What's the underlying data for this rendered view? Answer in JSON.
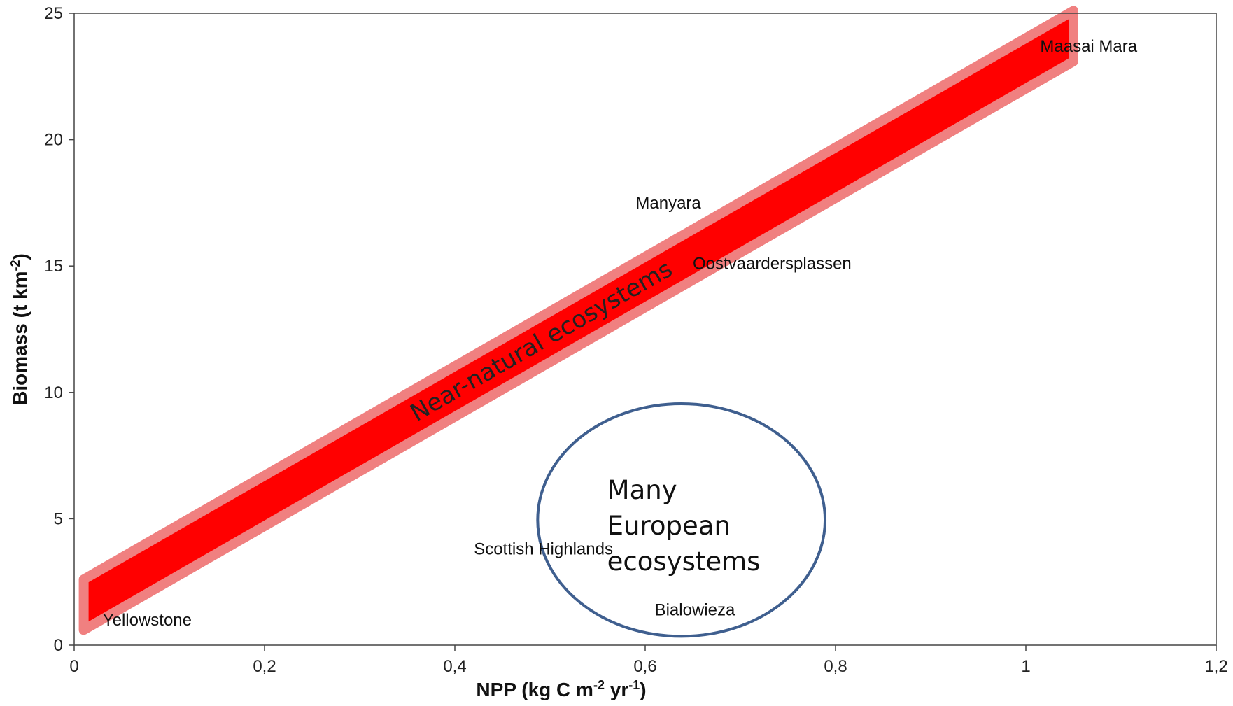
{
  "chart_data": {
    "type": "scatter",
    "title": "",
    "xlabel": "NPP (kg C m",
    "xlabel_sup1": "-2",
    "xlabel_mid": " yr",
    "xlabel_sup2": "-1",
    "xlabel_end": ")",
    "ylabel": "Biomass (t km",
    "ylabel_sup": "-2",
    "ylabel_end": ")",
    "xlim": [
      0,
      1.2
    ],
    "ylim": [
      0,
      25
    ],
    "x_ticks": [
      0,
      0.2,
      0.4,
      0.6,
      0.8,
      1.0,
      1.2
    ],
    "x_tick_labels": [
      "0",
      "0,2",
      "0,4",
      "0,6",
      "0,8",
      "1",
      "1,2"
    ],
    "y_ticks": [
      0,
      5,
      10,
      15,
      20,
      25
    ],
    "y_tick_labels": [
      "0",
      "5",
      "10",
      "15",
      "20",
      "25"
    ],
    "grid": false,
    "points": [
      {
        "label": "Yellowstone",
        "x": 0.03,
        "y": 1.0
      },
      {
        "label": "Scottish Highlands",
        "x": 0.42,
        "y": 3.8
      },
      {
        "label": "Bialowieza",
        "x": 0.61,
        "y": 1.4
      },
      {
        "label": "Manyara",
        "x": 0.59,
        "y": 17.5
      },
      {
        "label": "Oostvaardersplassen",
        "x": 0.65,
        "y": 15.1
      },
      {
        "label": "Maasai Mara",
        "x": 1.015,
        "y": 23.7
      }
    ],
    "band": {
      "label": "Near-natural ecosystems",
      "from": {
        "x": 0.01,
        "y": 1.6
      },
      "to": {
        "x": 1.05,
        "y": 24.1
      },
      "half_width_biomass": 1.0,
      "fill": "#ff0000",
      "outline": "#f08080"
    },
    "ellipse": {
      "lines": [
        "Many",
        "European",
        "ecosystems"
      ],
      "center": {
        "x": 0.638,
        "y": 4.95
      },
      "rx": 0.151,
      "ry": 4.6,
      "stroke": "#3f5f8f"
    }
  }
}
